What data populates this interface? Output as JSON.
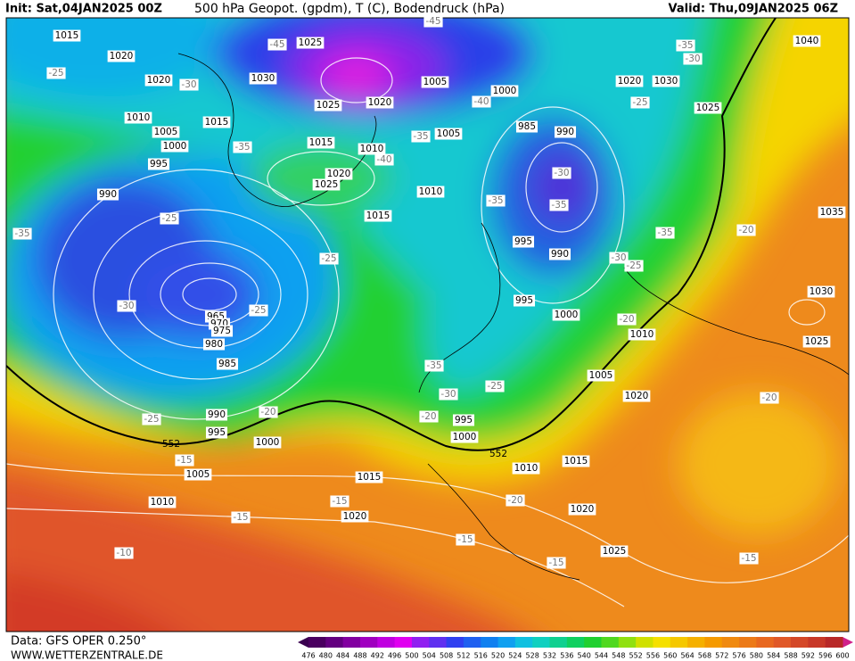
{
  "header": {
    "init": "Init: Sat,04JAN2025 00Z",
    "title": "500 hPa Geopot. (gpdm), T (C), Bodendruck (hPa)",
    "valid": "Valid: Thu,09JAN2025 06Z"
  },
  "footer": {
    "data": "Data: GFS OPER 0.250°",
    "site": "WWW.WETTERZENTRALE.DE"
  },
  "colorbar": {
    "labels": [
      "476",
      "480",
      "484",
      "488",
      "492",
      "496",
      "500",
      "504",
      "508",
      "512",
      "516",
      "520",
      "524",
      "528",
      "532",
      "536",
      "540",
      "544",
      "548",
      "552",
      "556",
      "560",
      "564",
      "568",
      "572",
      "576",
      "580",
      "584",
      "588",
      "592",
      "596",
      "600"
    ]
  },
  "isobar_labels": [
    "1015",
    "1025",
    "1020",
    "1030",
    "1020",
    "1005",
    "1000",
    "1025",
    "1020",
    "1010",
    "1015",
    "985",
    "990",
    "1005",
    "1005",
    "1000",
    "1015",
    "1010",
    "995",
    "1020",
    "1025",
    "1010",
    "990",
    "1015",
    "995",
    "990",
    "995",
    "1000",
    "965",
    "970",
    "975",
    "980",
    "985",
    "1010",
    "1005",
    "1020",
    "990",
    "995",
    "995",
    "1000",
    "1000",
    "1010",
    "1015",
    "1005",
    "1015",
    "1010",
    "1020",
    "1020",
    "1025",
    "1020",
    "1030",
    "1025",
    "1040",
    "1035",
    "1030",
    "1025"
  ],
  "temperature_labels": [
    "-45",
    "-45",
    "-35",
    "-30",
    "-25",
    "-30",
    "-25",
    "-40",
    "-35",
    "-35",
    "-40",
    "-30",
    "-35",
    "-35",
    "-25",
    "-35",
    "-35",
    "-30",
    "-25",
    "-25",
    "-20",
    "-30",
    "-25",
    "-20",
    "-35",
    "-25",
    "-30",
    "-20",
    "-25",
    "-20",
    "-15",
    "-15",
    "-20",
    "-15",
    "-15",
    "-15",
    "-10",
    "-15",
    "-20"
  ],
  "geopotential_labels": [
    "552",
    "552"
  ]
}
